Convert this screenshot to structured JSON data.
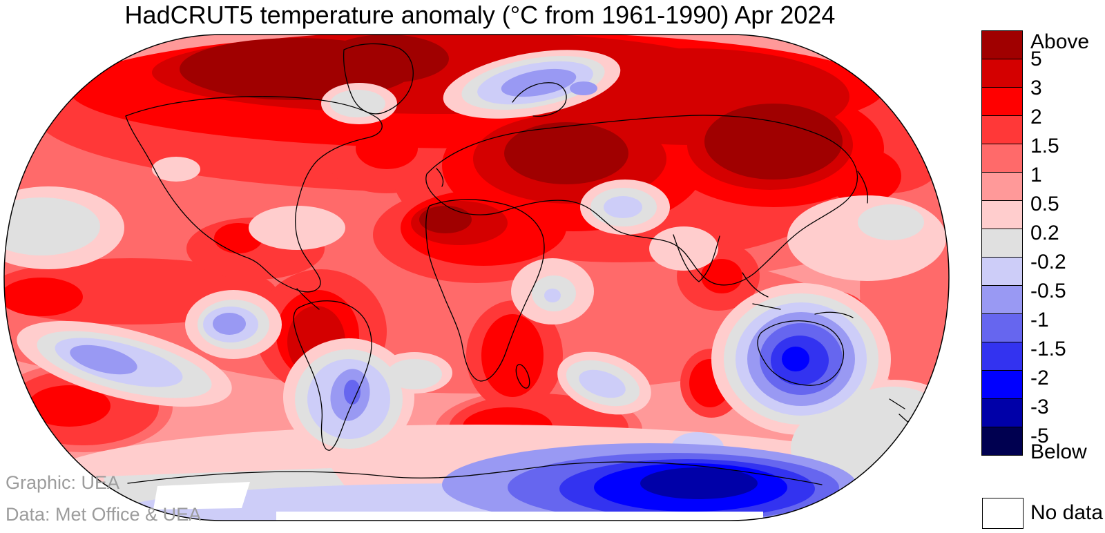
{
  "title": "HadCRUT5 temperature anomaly (°C from 1961-1990) Apr 2024",
  "credits": {
    "graphic": "Graphic: UEA",
    "data": "Data: Met Office & UEA"
  },
  "chart_data": {
    "type": "heatmap",
    "title": "HadCRUT5 temperature anomaly (°C from 1961-1990) Apr 2024",
    "dataset": "HadCRUT5",
    "units": "°C anomaly relative to 1961-1990",
    "period": "Apr 2024",
    "projection": "Robinson world map, filled contours",
    "legend": {
      "position": "right",
      "top_label": "Above",
      "bottom_label": "Below",
      "boundaries": [
        5,
        3,
        2,
        1.5,
        1,
        0.5,
        0.2,
        -0.2,
        -0.5,
        -1,
        -1.5,
        -2,
        -3,
        -5
      ],
      "bands": [
        {
          "range": "above 5",
          "color": "#A00000"
        },
        {
          "range": "3 to 5",
          "color": "#D40000"
        },
        {
          "range": "2 to 3",
          "color": "#FF0000"
        },
        {
          "range": "1.5 to 2",
          "color": "#FF3838"
        },
        {
          "range": "1 to 1.5",
          "color": "#FF6A6A"
        },
        {
          "range": "0.5 to 1",
          "color": "#FF9999"
        },
        {
          "range": "0.2 to 0.5",
          "color": "#FFCDCD"
        },
        {
          "range": "-0.2 to 0.2",
          "color": "#E0E0E0"
        },
        {
          "range": "-0.5 to -0.2",
          "color": "#CDCDF8"
        },
        {
          "range": "-1 to -0.5",
          "color": "#9999F3"
        },
        {
          "range": "-1.5 to -1",
          "color": "#6666EF"
        },
        {
          "range": "-2 to -1.5",
          "color": "#3333F0"
        },
        {
          "range": "-3 to -2",
          "color": "#0000FF"
        },
        {
          "range": "-5 to -3",
          "color": "#0000A8"
        },
        {
          "range": "below -5",
          "color": "#000050"
        }
      ],
      "no_data_label": "No data",
      "no_data_color": "#FFFFFF"
    },
    "map_features": [
      {
        "region": "Canadian Arctic and northern Greenland",
        "anomaly_c": "+3 to above +5"
      },
      {
        "region": "Eastern Europe / western Russia",
        "anomaly_c": "above +5"
      },
      {
        "region": "Northeast Siberia",
        "anomaly_c": "+3 to above +5"
      },
      {
        "region": "Scandinavia / White Sea region",
        "anomaly_c": "-0.5 to -1"
      },
      {
        "region": "Southeast Greenland coast",
        "anomaly_c": "-0.2 to +0.2"
      },
      {
        "region": "Sahara / North Africa / Mediterranean",
        "anomaly_c": "+2 to +5"
      },
      {
        "region": "Iran / Arabian Sea patch",
        "anomaly_c": "-0.2 to -0.5"
      },
      {
        "region": "East Africa",
        "anomaly_c": "-0.2 to +0.5"
      },
      {
        "region": "Central South America",
        "anomaly_c": "+2 to +3"
      },
      {
        "region": "Patagonia / Argentine coast",
        "anomaly_c": "-0.5 to -1"
      },
      {
        "region": "Coastal Peru Pacific patch",
        "anomaly_c": "-0.5 to -1"
      },
      {
        "region": "Equatorial east Pacific",
        "anomaly_c": "+1.5 to +3"
      },
      {
        "region": "North Pacific near Hawaii",
        "anomaly_c": "-0.2 to +0.2"
      },
      {
        "region": "Southeast Pacific band",
        "anomaly_c": "-0.5 to -1"
      },
      {
        "region": "Central and southern Australia",
        "anomaly_c": "-1.5 to -3"
      },
      {
        "region": "New Zealand surroundings",
        "anomaly_c": "-0.2 to +0.2"
      },
      {
        "region": "East Antarctica",
        "anomaly_c": "-3 to below -5"
      },
      {
        "region": "Antarctic Peninsula / Southern Ocean warm spots",
        "anomaly_c": "+1 to +2"
      },
      {
        "region": "Most remaining oceans and continents",
        "anomaly_c": "+0.5 to +2"
      }
    ]
  },
  "colors": {
    "background": "#FFFFFF",
    "coastline": "#000000",
    "title_text": "#000000",
    "credit_text": "#9C9C9C"
  }
}
